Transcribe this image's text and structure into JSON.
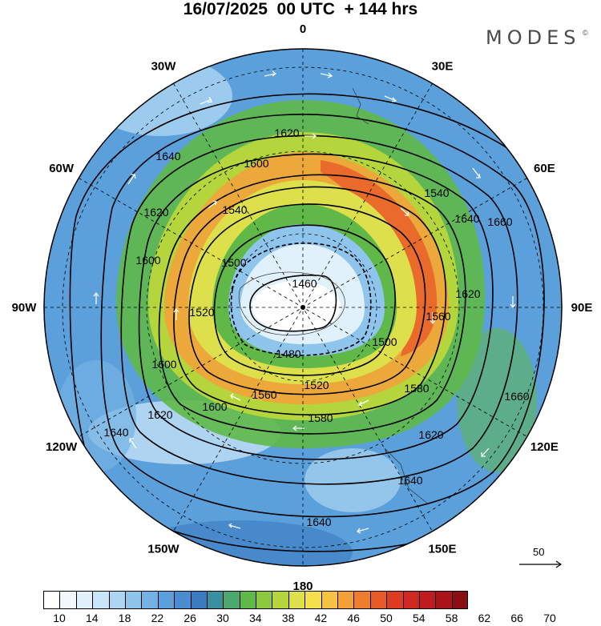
{
  "header": {
    "title": "16/07/2025  00 UTC  + 144 hrs",
    "brand": "MODES",
    "brand_mark": "©"
  },
  "map": {
    "projection": "polar-stereographic-south",
    "pole_marker": true,
    "longitude_labels": [
      {
        "text": "0",
        "deg": 0
      },
      {
        "text": "30E",
        "deg": 30
      },
      {
        "text": "60E",
        "deg": 60
      },
      {
        "text": "90E",
        "deg": 90
      },
      {
        "text": "120E",
        "deg": 120
      },
      {
        "text": "150E",
        "deg": 150
      },
      {
        "text": "180",
        "deg": 180
      },
      {
        "text": "150W",
        "deg": 210
      },
      {
        "text": "120W",
        "deg": 240
      },
      {
        "text": "90W",
        "deg": 270
      },
      {
        "text": "60W",
        "deg": 300
      },
      {
        "text": "30W",
        "deg": 330
      }
    ],
    "contour_labels": [
      "1460",
      "1480",
      "1500",
      "1520",
      "1540",
      "1560",
      "1580",
      "1600",
      "1620",
      "1640",
      "1660"
    ],
    "reference_vector": {
      "label": "50",
      "value": 50
    }
  },
  "colorbar": {
    "tick_labels": [
      "10",
      "14",
      "18",
      "22",
      "26",
      "30",
      "34",
      "38",
      "42",
      "46",
      "50",
      "54",
      "58",
      "62",
      "66",
      "70"
    ],
    "colors": [
      "#ffffff",
      "#f2f9fd",
      "#e1f1fb",
      "#c9e6f8",
      "#acd6f2",
      "#8fc4ec",
      "#73b2e4",
      "#5b9fdb",
      "#4a8ccf",
      "#3b7bbf",
      "#3a90a0",
      "#4aa86e",
      "#5fb848",
      "#8cc83e",
      "#b5d53c",
      "#dde04a",
      "#f5e04c",
      "#f8c243",
      "#f6a03a",
      "#f07c30",
      "#e85a28",
      "#dd3b22",
      "#d02720",
      "#be1c1e",
      "#a8141a",
      "#8c0e15"
    ]
  }
}
